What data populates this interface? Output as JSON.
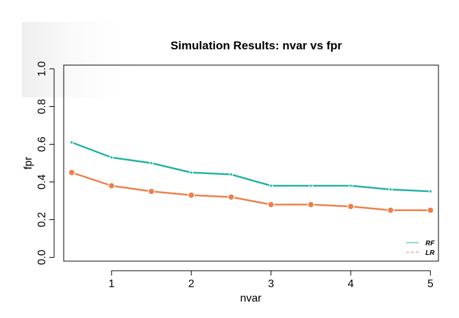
{
  "chart_data": {
    "type": "line",
    "title": "Simulation Results: nvar vs fpr",
    "xlabel": "nvar",
    "ylabel": "fpr",
    "xlim": [
      0.4,
      5.1
    ],
    "ylim": [
      -0.02,
      1.02
    ],
    "x_ticks": [
      1,
      2,
      3,
      4,
      5
    ],
    "y_ticks": [
      0.0,
      0.2,
      0.4,
      0.6,
      0.8,
      1.0
    ],
    "x_tick_labels": [
      "1",
      "2",
      "3",
      "4",
      "5"
    ],
    "y_tick_labels": [
      "0.0",
      "0.2",
      "0.4",
      "0.6",
      "0.8",
      "1.0"
    ],
    "x": [
      0.5,
      1.0,
      1.5,
      2.0,
      2.5,
      3.0,
      3.5,
      4.0,
      4.5,
      5.0
    ],
    "series": [
      {
        "name": "RF",
        "color": "#20b2a4",
        "values": [
          0.61,
          0.53,
          0.5,
          0.45,
          0.44,
          0.38,
          0.38,
          0.38,
          0.36,
          0.35
        ]
      },
      {
        "name": "LR",
        "color": "#f07e4a",
        "values": [
          0.45,
          0.38,
          0.35,
          0.33,
          0.32,
          0.28,
          0.28,
          0.27,
          0.25,
          0.25
        ]
      }
    ],
    "grid": false,
    "legend_position": "bottom-right"
  }
}
